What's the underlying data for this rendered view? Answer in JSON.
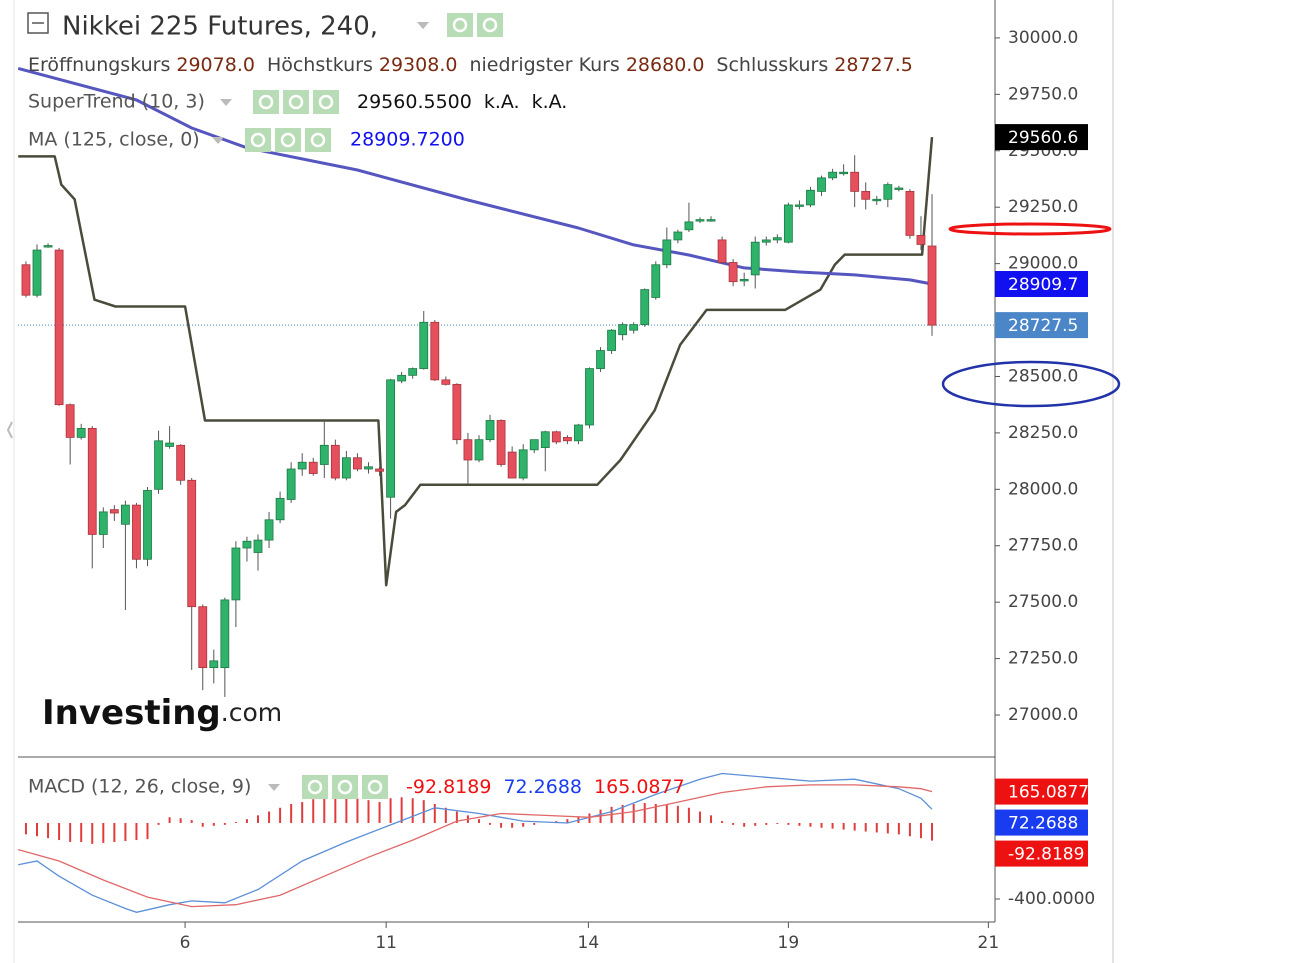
{
  "chart_data": [
    {
      "type": "candlestick",
      "title": "Nikkei 225 Futures, 240,",
      "ohlc_legend": [
        {
          "label": "Eröffnungskurs",
          "value": "29078.0"
        },
        {
          "label": "Höchstkurs",
          "value": "29308.0"
        },
        {
          "label": "niedrigster Kurs",
          "value": "28680.0"
        },
        {
          "label": "Schlusskurs",
          "value": "28727.5"
        }
      ],
      "x": [
        0,
        1,
        2,
        3,
        4,
        5,
        6,
        7,
        8,
        9,
        10,
        11,
        12,
        13,
        14,
        15,
        16,
        17,
        18,
        19,
        20,
        21,
        22,
        23,
        24,
        25,
        26,
        27,
        28,
        29,
        30,
        31,
        32,
        33,
        34,
        35,
        36,
        37,
        38,
        39,
        40,
        41,
        42,
        43,
        44,
        45,
        46,
        47,
        48,
        49,
        50,
        51,
        52,
        53,
        54,
        55,
        56,
        57,
        58,
        59,
        60,
        61,
        62,
        63,
        64,
        65,
        66,
        67,
        68,
        69,
        70,
        71,
        72,
        73,
        74,
        75,
        76,
        77,
        78,
        79,
        80,
        81,
        82
      ],
      "open": [
        28995,
        28860,
        29075,
        29060,
        28375,
        28230,
        28270,
        27800,
        27910,
        27845,
        27930,
        27690,
        28000,
        28190,
        28195,
        28040,
        27480,
        27210,
        27210,
        27510,
        27740,
        27720,
        27775,
        27865,
        27955,
        28090,
        28120,
        28110,
        28195,
        28050,
        28140,
        28090,
        28090,
        27965,
        28480,
        28505,
        28535,
        28740,
        28485,
        28465,
        28220,
        28130,
        28220,
        28305,
        28165,
        28050,
        28175,
        28185,
        28255,
        28230,
        28215,
        28285,
        28535,
        28615,
        28685,
        28705,
        28730,
        28850,
        28995,
        29105,
        29150,
        29190,
        29195,
        29105,
        29005,
        28930,
        28950,
        29095,
        29105,
        29095,
        29260,
        29260,
        29320,
        29380,
        29405,
        29405,
        29320,
        29280,
        29285,
        29335,
        29320,
        29125,
        29078
      ],
      "high": [
        29010,
        29085,
        29090,
        29070,
        28380,
        28290,
        28280,
        27920,
        27930,
        27950,
        27940,
        28010,
        28260,
        28280,
        28200,
        28050,
        27490,
        27290,
        27520,
        27770,
        27790,
        27800,
        27900,
        27990,
        28120,
        28160,
        28140,
        28310,
        28220,
        28170,
        28160,
        28120,
        28100,
        28490,
        28520,
        28540,
        28790,
        28750,
        28500,
        28470,
        28250,
        28240,
        28330,
        28310,
        28190,
        28200,
        28220,
        28260,
        28260,
        28240,
        28290,
        28540,
        28630,
        28710,
        28740,
        28740,
        28890,
        29010,
        29160,
        29150,
        29270,
        29205,
        29210,
        29120,
        29020,
        28960,
        29120,
        29120,
        29130,
        29270,
        29280,
        29340,
        29390,
        29420,
        29440,
        29480,
        29360,
        29300,
        29360,
        29345,
        29330,
        29210,
        29308
      ],
      "low": [
        28850,
        28850,
        29070,
        28370,
        28110,
        28220,
        27650,
        27740,
        27860,
        27465,
        27650,
        27660,
        27980,
        28180,
        28020,
        27200,
        27110,
        27140,
        27080,
        27390,
        27680,
        27640,
        27740,
        27850,
        27940,
        28060,
        28060,
        28050,
        28040,
        28040,
        28080,
        28070,
        28060,
        27870,
        28470,
        28490,
        28530,
        28480,
        28460,
        28200,
        28020,
        28120,
        28210,
        28100,
        28050,
        28040,
        28160,
        28080,
        28200,
        28200,
        28200,
        28270,
        28520,
        28600,
        28660,
        28690,
        28720,
        28840,
        28980,
        29090,
        29140,
        29180,
        29185,
        29000,
        28900,
        28900,
        28890,
        29080,
        29090,
        29090,
        29240,
        29250,
        29300,
        29370,
        29390,
        29250,
        29240,
        29260,
        29250,
        29320,
        29110,
        29060,
        28680
      ],
      "close": [
        28860,
        29060,
        29080,
        28375,
        28230,
        28270,
        27800,
        27900,
        27895,
        27930,
        27690,
        27995,
        28215,
        28205,
        28040,
        27480,
        27210,
        27240,
        27510,
        27740,
        27770,
        27775,
        27865,
        27960,
        28090,
        28120,
        28070,
        28195,
        28050,
        28140,
        28090,
        28100,
        28080,
        28485,
        28505,
        28535,
        28740,
        28485,
        28465,
        28220,
        28130,
        28220,
        28305,
        28110,
        28050,
        28175,
        28220,
        28255,
        28210,
        28215,
        28285,
        28535,
        28615,
        28705,
        28730,
        28730,
        28885,
        28995,
        29105,
        29140,
        29185,
        29195,
        29195,
        29005,
        28920,
        28930,
        29095,
        29105,
        29115,
        29260,
        29260,
        29325,
        29380,
        29405,
        29405,
        29320,
        29285,
        29285,
        29350,
        29335,
        29125,
        29085,
        28727.5
      ],
      "up_color": "#2fb36b",
      "down_color": "#e5505c",
      "last_price_color": "#4a86c8",
      "xlim": [
        -0.72,
        87.7
      ],
      "xticks": [
        {
          "value": 14.4,
          "label": "6"
        },
        {
          "value": 32.6,
          "label": "11"
        },
        {
          "value": 50.9,
          "label": "14"
        },
        {
          "value": 69.0,
          "label": "19"
        },
        {
          "value": 87.1,
          "label": "21"
        }
      ],
      "ylim": [
        26814,
        30168
      ],
      "yticks": [
        {
          "value": 27000,
          "label": "27000.0"
        },
        {
          "value": 27250,
          "label": "27250.0"
        },
        {
          "value": 27500,
          "label": "27500.0"
        },
        {
          "value": 27750,
          "label": "27750.0"
        },
        {
          "value": 28000,
          "label": "28000.0"
        },
        {
          "value": 28250,
          "label": "28250.0"
        },
        {
          "value": 28500,
          "label": "28500.0"
        },
        {
          "value": 28750,
          "label": "28750.0"
        },
        {
          "value": 29000,
          "label": "29000.0"
        },
        {
          "value": 29250,
          "label": "29250.0"
        },
        {
          "value": 29500,
          "label": "29500.0"
        },
        {
          "value": 29750,
          "label": "29750.0"
        },
        {
          "value": 30000,
          "label": "30000.0"
        }
      ],
      "series": [
        {
          "name": "SuperTrend (10, 3)",
          "color": "#4b4b3c",
          "tag_color": "#000000",
          "legend_values": [
            "29560.5500",
            "k.A.",
            "k.A."
          ],
          "x": [
            -0.7,
            2.6,
            3.2,
            4.4,
            6.2,
            8.1,
            14.4,
            16.2,
            31.9,
            32.6,
            33.5,
            34.3,
            35.7,
            51.7,
            53.8,
            56.9,
            59.2,
            61.6,
            68.7,
            71.9,
            73.2,
            74.1,
            81.1,
            82
          ],
          "values": [
            29475,
            29475,
            29350,
            29285,
            28840,
            28810,
            28810,
            28305,
            28305,
            27575,
            27900,
            27930,
            28020,
            28020,
            28130,
            28350,
            28640,
            28795,
            28795,
            28885,
            28995,
            29040,
            29040,
            29560.6
          ]
        },
        {
          "name": "MA (125, close, 0)",
          "color": "#5656c0",
          "tag_color": "#1010f0",
          "legend_values": [
            "28909.7200"
          ],
          "x": [
            -0.7,
            10,
            15,
            20,
            30,
            40,
            50,
            55,
            60,
            65,
            70,
            75,
            80,
            82
          ],
          "values": [
            29865,
            29725,
            29601,
            29513,
            29415,
            29282,
            29158,
            29083,
            29038,
            28981,
            28963,
            28950,
            28928,
            28909.7
          ]
        }
      ],
      "watermark": [
        "Investing",
        ".com"
      ]
    },
    {
      "type": "macd",
      "title": "MACD (12, 26, close, 9)",
      "ylim": [
        -521,
        347
      ],
      "yticks": [
        {
          "value": -400,
          "label": "-400.0000"
        }
      ],
      "histogram_color": "#e03c3c",
      "histogram_tag_color": "#ee1111",
      "histogram": [
        -60,
        -70,
        -80,
        -90,
        -100,
        -100,
        -110,
        -105,
        -100,
        -95,
        -90,
        -85,
        -10,
        30,
        25,
        15,
        -20,
        -15,
        -10,
        5,
        20,
        40,
        60,
        80,
        100,
        110,
        125,
        130,
        135,
        135,
        130,
        120,
        110,
        130,
        135,
        130,
        120,
        100,
        80,
        60,
        40,
        20,
        -10,
        -25,
        -25,
        -20,
        -10,
        0,
        10,
        20,
        30,
        50,
        70,
        85,
        95,
        100,
        105,
        100,
        95,
        90,
        80,
        60,
        40,
        10,
        -10,
        -20,
        -15,
        -10,
        -5,
        -10,
        -15,
        -20,
        -25,
        -30,
        -35,
        -40,
        -45,
        -50,
        -55,
        -60,
        -70,
        -80,
        -92.8189
      ],
      "series": [
        {
          "name": "MACD",
          "color": "#5b8fd8",
          "tag_color": "#1a3cf0",
          "x": [
            -0.7,
            1,
            3,
            6,
            9,
            10,
            13,
            15,
            18,
            21,
            25,
            29,
            33,
            37,
            41,
            45,
            49,
            53,
            57,
            61,
            63,
            67,
            71,
            75,
            79,
            81,
            82
          ],
          "values": [
            -220,
            -200,
            -280,
            -380,
            -450,
            -470,
            -430,
            -410,
            -420,
            -350,
            -200,
            -100,
            -10,
            80,
            50,
            10,
            0,
            60,
            150,
            230,
            260,
            240,
            220,
            230,
            180,
            130,
            72.2688
          ]
        },
        {
          "name": "Signal",
          "color": "#e06868",
          "tag_color": "#ee1111",
          "x": [
            -0.7,
            3,
            7,
            11,
            15,
            19,
            23,
            27,
            31,
            35,
            39,
            43,
            47,
            51,
            55,
            59,
            63,
            67,
            71,
            75,
            79,
            81,
            82
          ],
          "values": [
            -140,
            -200,
            -300,
            -390,
            -440,
            -430,
            -380,
            -280,
            -180,
            -90,
            10,
            50,
            40,
            30,
            60,
            110,
            160,
            190,
            200,
            200,
            190,
            180,
            165.0877
          ]
        }
      ]
    }
  ]
}
